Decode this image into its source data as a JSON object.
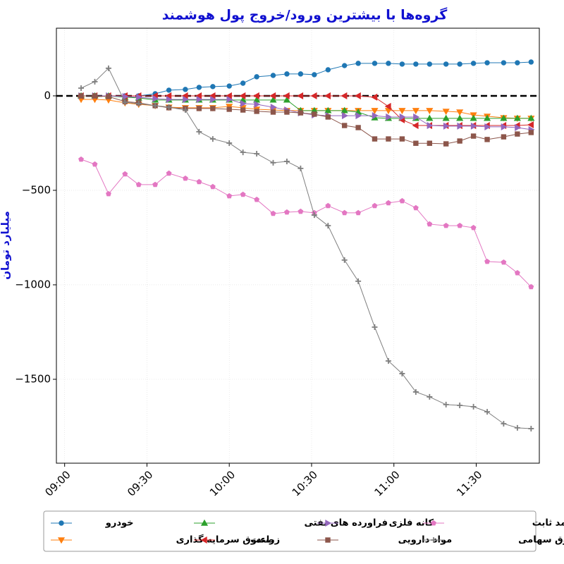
{
  "chart_data": {
    "type": "line",
    "title": "گروه‌ها با بیشترین ورود/خروج پول هوشمند",
    "y_label": "میلیارد تومان",
    "x": [
      "09:06",
      "09:11",
      "09:16",
      "09:22",
      "09:27",
      "09:33",
      "09:38",
      "09:44",
      "09:49",
      "09:54",
      "10:00",
      "10:05",
      "10:10",
      "10:16",
      "10:21",
      "10:26",
      "10:31",
      "10:36",
      "10:42",
      "10:47",
      "10:53",
      "10:58",
      "11:03",
      "11:08",
      "11:13",
      "11:19",
      "11:24",
      "11:29",
      "11:34",
      "11:40",
      "11:45",
      "11:50"
    ],
    "xlim": [
      "08:57",
      "11:53"
    ],
    "xticks": [
      "09:00",
      "09:30",
      "10:00",
      "10:30",
      "11:00",
      "11:30"
    ],
    "ylim": [
      -1944,
      358
    ],
    "yticks": [
      {
        "value": -1500,
        "label": "−1500"
      },
      {
        "value": -1000,
        "label": "−1000"
      },
      {
        "value": -500,
        "label": "−500"
      },
      0
    ],
    "reference_line": 0,
    "grid": true,
    "legend_position": "bottom",
    "series": [
      {
        "name": "خودرو",
        "color": "#1f77b4",
        "marker": "circle",
        "values": [
          0,
          0,
          0,
          0,
          0,
          11,
          30,
          34,
          45,
          49,
          52,
          67,
          101,
          108,
          116,
          116,
          112,
          138,
          160,
          172,
          172,
          172,
          168,
          168,
          168,
          168,
          168,
          172,
          175,
          175,
          175,
          179
        ]
      },
      {
        "name": "صندوق سرمایه گذاری",
        "color": "#ff7f0e",
        "marker": "triangle-down",
        "values": [
          -19,
          -19,
          -22,
          -37,
          -45,
          -52,
          -60,
          -63,
          -63,
          -63,
          -56,
          -63,
          -71,
          -75,
          -78,
          -78,
          -78,
          -78,
          -78,
          -78,
          -78,
          -78,
          -78,
          -78,
          -78,
          -82,
          -86,
          -101,
          -108,
          -116,
          -119,
          -119
        ]
      },
      {
        "name": "فراورده های نفتی",
        "color": "#2ca02c",
        "marker": "triangle-up",
        "values": [
          0,
          0,
          0,
          -7,
          -11,
          -22,
          -22,
          -22,
          -22,
          -22,
          -22,
          -22,
          -22,
          -22,
          -22,
          -78,
          -78,
          -78,
          -78,
          -86,
          -116,
          -119,
          -119,
          -119,
          -119,
          -119,
          -119,
          -119,
          -119,
          -119,
          -119,
          -119
        ]
      },
      {
        "name": "زراعت",
        "color": "#d62728",
        "marker": "triangle-left",
        "values": [
          0,
          0,
          0,
          0,
          0,
          0,
          0,
          0,
          0,
          0,
          0,
          0,
          0,
          0,
          0,
          0,
          0,
          0,
          0,
          0,
          -7,
          -56,
          -127,
          -157,
          -157,
          -157,
          -157,
          -157,
          -157,
          -157,
          -157,
          -153
        ]
      },
      {
        "name": "کانه فلزی",
        "color": "#9467bd",
        "marker": "triangle-right",
        "values": [
          0,
          0,
          0,
          -4,
          -7,
          -15,
          -19,
          -19,
          -19,
          -19,
          -19,
          -41,
          -45,
          -60,
          -75,
          -90,
          -101,
          -105,
          -105,
          -105,
          -105,
          -112,
          -112,
          -112,
          -157,
          -160,
          -160,
          -160,
          -164,
          -164,
          -168,
          -179
        ]
      },
      {
        "name": "مواد دارویی",
        "color": "#8c564b",
        "marker": "square",
        "values": [
          0,
          0,
          -4,
          -30,
          -37,
          -52,
          -63,
          -67,
          -67,
          -67,
          -71,
          -75,
          -82,
          -86,
          -86,
          -90,
          -97,
          -112,
          -157,
          -168,
          -228,
          -228,
          -228,
          -251,
          -251,
          -254,
          -239,
          -213,
          -231,
          -217,
          -202,
          -194
        ]
      },
      {
        "name": "صندوق درآمد ثابت",
        "color": "#e377c2",
        "marker": "pentagon",
        "values": [
          -336,
          -362,
          -519,
          -414,
          -470,
          -470,
          -410,
          -437,
          -455,
          -481,
          -530,
          -522,
          -549,
          -623,
          -616,
          -612,
          -619,
          -582,
          -619,
          -619,
          -582,
          -567,
          -556,
          -593,
          -679,
          -687,
          -687,
          -698,
          -877,
          -881,
          -937,
          -1011
        ]
      },
      {
        "name": "صندوق سهامی",
        "color": "#7f7f7f",
        "marker": "plus",
        "values": [
          41,
          75,
          146,
          -34,
          -41,
          -52,
          -60,
          -75,
          -190,
          -228,
          -250,
          -299,
          -306,
          -354,
          -347,
          -384,
          -631,
          -687,
          -869,
          -981,
          -1224,
          -1403,
          -1470,
          -1567,
          -1593,
          -1634,
          -1638,
          -1645,
          -1672,
          -1735,
          -1757,
          -1761
        ]
      }
    ]
  }
}
